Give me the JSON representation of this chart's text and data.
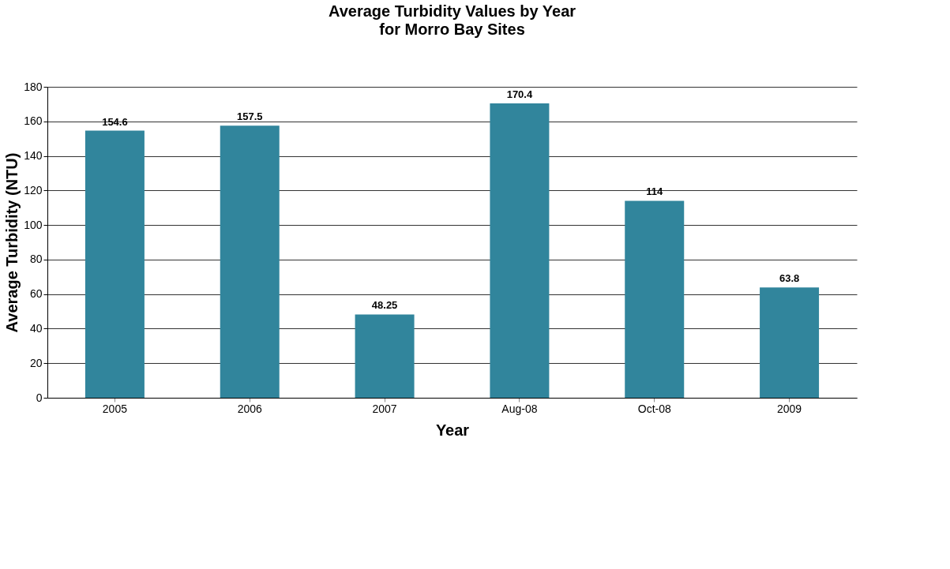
{
  "chart_data": {
    "type": "bar",
    "title": "Average Turbidity Values by Year",
    "subtitle": "for Morro Bay Sites",
    "xlabel": "Year",
    "ylabel": "Average Turbidity (NTU)",
    "categories": [
      "2005",
      "2006",
      "2007",
      "Aug-08",
      "Oct-08",
      "2009"
    ],
    "values": [
      154.6,
      157.5,
      48.25,
      170.4,
      114,
      63.8
    ],
    "color": "#31859c",
    "ylim": [
      0,
      180
    ],
    "yticks": [
      0,
      20,
      40,
      60,
      80,
      100,
      120,
      140,
      160,
      180
    ],
    "grid": "y",
    "data_labels": true
  }
}
